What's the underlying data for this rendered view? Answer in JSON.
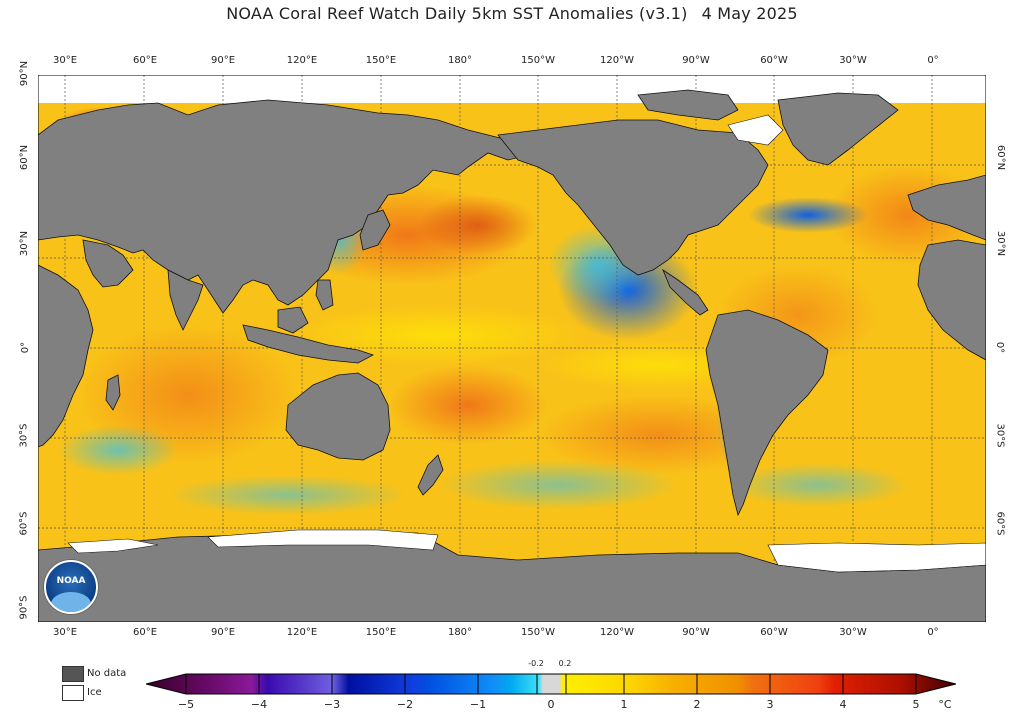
{
  "title": "NOAA Coral Reef Watch Daily 5km SST Anomalies  (v3.1)",
  "date": "4 May 2025",
  "lon_labels": [
    "30°E",
    "60°E",
    "90°E",
    "120°E",
    "150°E",
    "180°",
    "150°W",
    "120°W",
    "90°W",
    "60°W",
    "30°W",
    "0°"
  ],
  "lat_labels_left": [
    "90°N",
    "60°N",
    "30°N",
    "0°",
    "30°S",
    "60°S",
    "90°S"
  ],
  "lat_labels_right": [
    "60°N",
    "30°N",
    "0°",
    "30°S",
    "60°S"
  ],
  "legend": {
    "no_data": "No data",
    "ice": "Ice"
  },
  "colorbar": {
    "ticks": [
      "−5",
      "−4",
      "−3",
      "−2",
      "−1",
      "0",
      "1",
      "2",
      "3",
      "4",
      "5"
    ],
    "small_ticks": [
      "-0.2",
      "0.2"
    ],
    "unit": "°C",
    "colors": {
      "no_data": "#808080",
      "ice": "#ffffff"
    }
  },
  "logo": {
    "text": "NOAA"
  }
}
